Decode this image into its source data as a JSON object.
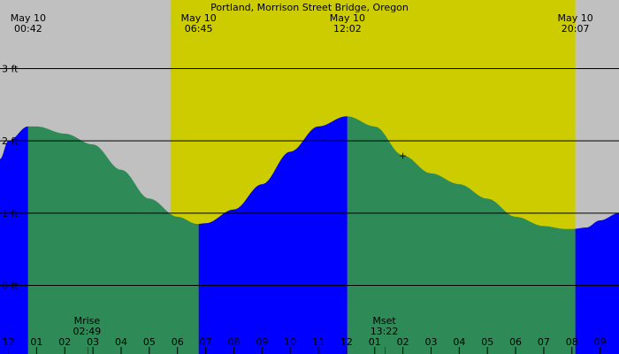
{
  "chart_data": {
    "type": "area",
    "title": "Portland, Morrison Street Bridge, Oregon",
    "colors": {
      "night": "#c0c0c0",
      "day": "#cccc00",
      "rising": "#0000ff",
      "falling": "#2e8b57",
      "gridline": "#000000",
      "moon_tick": "#cc0000"
    },
    "x_range": [
      -0.3,
      21.67
    ],
    "ylim": [
      -0.95,
      3.95
    ],
    "y_gridlines": [
      {
        "value": 3,
        "label": "3 ft"
      },
      {
        "value": 2,
        "label": "2 ft"
      },
      {
        "value": 1,
        "label": "1 ft"
      },
      {
        "value": 0,
        "label": "0 ft"
      }
    ],
    "x_ticks": [
      {
        "t": -0.3,
        "label": "1"
      },
      {
        "t": 0,
        "label": "12"
      },
      {
        "t": 1,
        "label": "01"
      },
      {
        "t": 2,
        "label": "02"
      },
      {
        "t": 3,
        "label": "03"
      },
      {
        "t": 4,
        "label": "04"
      },
      {
        "t": 5,
        "label": "05"
      },
      {
        "t": 6,
        "label": "06"
      },
      {
        "t": 7,
        "label": "07"
      },
      {
        "t": 8,
        "label": "08"
      },
      {
        "t": 9,
        "label": "09"
      },
      {
        "t": 10,
        "label": "10"
      },
      {
        "t": 11,
        "label": "11"
      },
      {
        "t": 12,
        "label": "12"
      },
      {
        "t": 13,
        "label": "01"
      },
      {
        "t": 14,
        "label": "02"
      },
      {
        "t": 15,
        "label": "03"
      },
      {
        "t": 16,
        "label": "04"
      },
      {
        "t": 17,
        "label": "05"
      },
      {
        "t": 18,
        "label": "06"
      },
      {
        "t": 19,
        "label": "07"
      },
      {
        "t": 20,
        "label": "08"
      },
      {
        "t": 21,
        "label": "09"
      }
    ],
    "daylight": {
      "start": 5.75,
      "end": 20.12
    },
    "top_labels": [
      {
        "t": 0.7,
        "date": "May 10",
        "time": "00:42"
      },
      {
        "t": 6.75,
        "date": "May 10",
        "time": "06:45"
      },
      {
        "t": 12.03,
        "date": "May 10",
        "time": "12:02"
      },
      {
        "t": 20.12,
        "date": "May 10",
        "time": "20:07"
      }
    ],
    "moon_labels": [
      {
        "t": 2.82,
        "label": "Mrise",
        "time": "02:49"
      },
      {
        "t": 13.37,
        "label": "Mset",
        "time": "13:22"
      }
    ],
    "series": [
      {
        "name": "tide",
        "x": [
          -0.3,
          0,
          0.7,
          1,
          2,
          3,
          4,
          5,
          6,
          6.7,
          7,
          8,
          9,
          10,
          11,
          12,
          12.03,
          13,
          14,
          15,
          16,
          17,
          18,
          19,
          19.8,
          20,
          20.5,
          21,
          21.67
        ],
        "y": [
          1.75,
          2.0,
          2.2,
          2.2,
          2.1,
          1.95,
          1.6,
          1.2,
          0.95,
          0.85,
          0.86,
          1.05,
          1.4,
          1.85,
          2.2,
          2.34,
          2.34,
          2.2,
          1.8,
          1.55,
          1.4,
          1.2,
          0.95,
          0.82,
          0.78,
          0.78,
          0.8,
          0.9,
          1.0
        ]
      }
    ],
    "markers": [
      {
        "t": 14.0,
        "value": 1.8,
        "symbol": "+"
      }
    ]
  }
}
